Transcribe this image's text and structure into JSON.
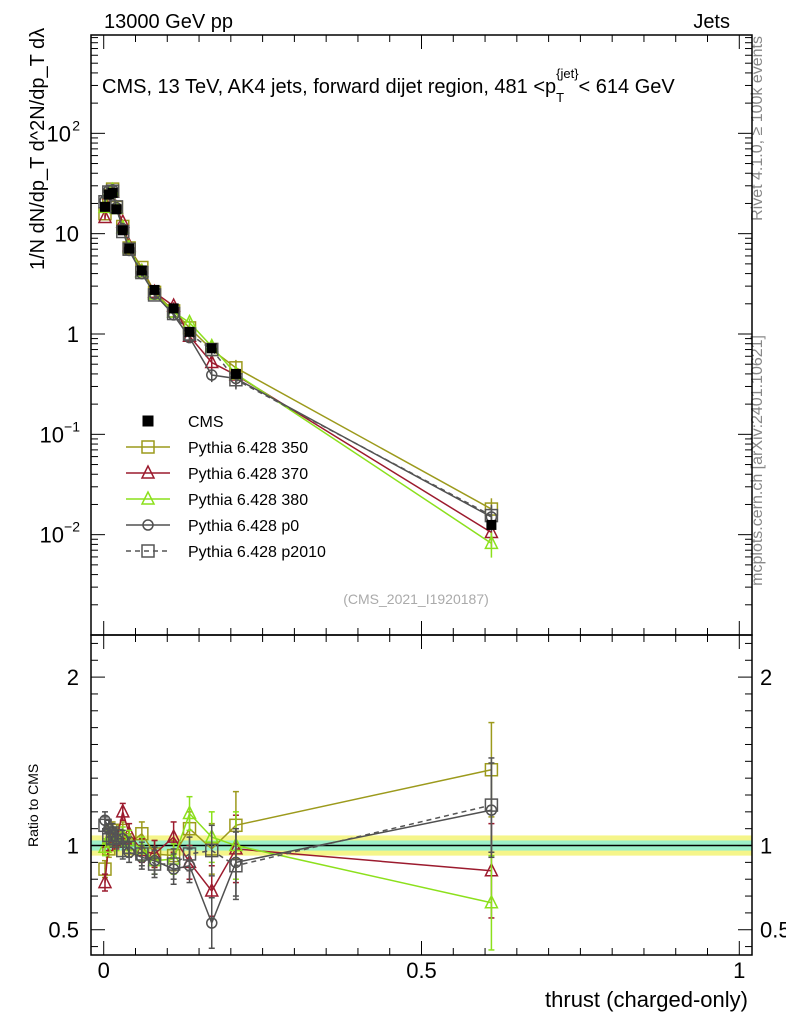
{
  "header": {
    "left": "13000 GeV pp",
    "right": "Jets"
  },
  "chart_data": {
    "type": "line",
    "title": "CMS, 13 TeV, AK4 jets, forward dijet region, 481 <p_T^{jet}< 614 GeV",
    "title_parts": {
      "main": "CMS, 13 TeV, AK4 jets, forward dijet region, 481 <p",
      "sub": "T",
      "sup": "{jet}",
      "tail": "< 614 GeV"
    },
    "xlabel": "thrust (charged-only)",
    "ylabel_main": "1/N dN/dp_T d^2N/dp_T dλ",
    "ylabel_ratio": "Ratio to CMS",
    "side_label_right_top": "Rivet 4.1.0, ≥ 100k events",
    "side_label_right_bottom": "mcplots.cern.ch [arXiv:2401.10621]",
    "analysis_id": "(CMS_2021_I1920187)",
    "xlim": [
      -0.02,
      1.02
    ],
    "ylim_main_log10": [
      -3.0,
      2.98
    ],
    "ylim_ratio": [
      0.35,
      2.25
    ],
    "x_ticks": [
      0,
      0.5,
      1
    ],
    "x_tick_labels": [
      "0",
      "0.5",
      "1"
    ],
    "y_ticks_main": [
      {
        "exp": 2,
        "label": "10",
        "sup": "2"
      },
      {
        "exp": 1,
        "label": "10",
        "sup": ""
      },
      {
        "exp": 0,
        "label": "1",
        "sup": ""
      },
      {
        "exp": -1,
        "label": "10",
        "sup": "−1"
      },
      {
        "exp": -2,
        "label": "10",
        "sup": "−2"
      }
    ],
    "y_ticks_ratio": [
      {
        "value": 0.5,
        "label": "0.5"
      },
      {
        "value": 1,
        "label": "1"
      },
      {
        "value": 2,
        "label": "2"
      }
    ],
    "x": [
      0.002,
      0.008,
      0.014,
      0.02,
      0.03,
      0.04,
      0.06,
      0.08,
      0.11,
      0.135,
      0.17,
      0.208,
      0.61
    ],
    "data": {
      "name": "CMS",
      "values": [
        18.5,
        24.5,
        25.5,
        17.5,
        10.8,
        7.1,
        4.3,
        2.75,
        1.8,
        1.05,
        0.72,
        0.4,
        0.0125
      ],
      "band_inner": 0.03,
      "band_outer": 0.06
    },
    "series": [
      {
        "name": "Pythia 6.428 350",
        "color": "#9c9a1c",
        "marker": "square",
        "dash": false,
        "values": [
          15.8,
          24.0,
          27.8,
          18.3,
          11.8,
          7.2,
          4.6,
          2.6,
          1.7,
          1.15,
          0.7,
          0.46,
          0.018
        ],
        "ratio": [
          0.86,
          0.98,
          1.09,
          1.05,
          1.09,
          1.01,
          1.07,
          0.95,
          0.94,
          1.1,
          0.98,
          1.12,
          1.45
        ],
        "ratio_err": [
          0.05,
          0.05,
          0.05,
          0.05,
          0.05,
          0.06,
          0.07,
          0.08,
          0.09,
          0.1,
          0.15,
          0.2,
          0.28
        ]
      },
      {
        "name": "Pythia 6.428 370",
        "color": "#9c1b2e",
        "marker": "triangle",
        "dash": false,
        "values": [
          14.5,
          25.0,
          26.0,
          18.0,
          13.0,
          7.6,
          4.2,
          2.6,
          1.9,
          0.95,
          0.52,
          0.39,
          0.0105
        ],
        "ratio": [
          0.78,
          1.02,
          1.02,
          1.03,
          1.2,
          1.07,
          0.97,
          0.95,
          1.05,
          0.9,
          0.73,
          0.98,
          0.85
        ],
        "ratio_err": [
          0.05,
          0.05,
          0.05,
          0.05,
          0.05,
          0.06,
          0.07,
          0.08,
          0.09,
          0.1,
          0.15,
          0.2,
          0.28
        ]
      },
      {
        "name": "Pythia 6.428 380",
        "color": "#8ce01c",
        "marker": "triangle",
        "dash": false,
        "values": [
          18.3,
          25.5,
          27.0,
          17.8,
          11.5,
          7.3,
          4.2,
          2.5,
          1.65,
          1.3,
          0.75,
          0.4,
          0.0082
        ],
        "ratio": [
          0.99,
          1.04,
          1.06,
          1.02,
          1.06,
          1.03,
          0.98,
          0.91,
          0.92,
          1.19,
          1.05,
          1.0,
          0.66
        ],
        "ratio_err": [
          0.05,
          0.05,
          0.05,
          0.05,
          0.05,
          0.06,
          0.07,
          0.08,
          0.09,
          0.1,
          0.15,
          0.2,
          0.28
        ]
      },
      {
        "name": "Pythia 6.428 p0",
        "color": "#505050",
        "marker": "circle",
        "dash": false,
        "values": [
          21.3,
          27.0,
          27.4,
          18.2,
          11.2,
          6.8,
          4.0,
          2.5,
          1.55,
          0.92,
          0.39,
          0.36,
          0.015
        ],
        "ratio": [
          1.15,
          1.1,
          1.08,
          1.04,
          1.04,
          0.96,
          0.93,
          0.91,
          0.86,
          0.88,
          0.54,
          0.9,
          1.21
        ],
        "ratio_err": [
          0.05,
          0.05,
          0.05,
          0.05,
          0.05,
          0.06,
          0.07,
          0.08,
          0.09,
          0.1,
          0.15,
          0.2,
          0.28
        ]
      },
      {
        "name": "Pythia 6.428 p2010",
        "color": "#555555",
        "marker": "square",
        "dash": true,
        "values": [
          20.8,
          26.0,
          26.5,
          18.5,
          10.5,
          7.0,
          4.1,
          2.45,
          1.6,
          1.0,
          0.7,
          0.35,
          0.0155
        ],
        "ratio": [
          1.12,
          1.06,
          1.04,
          1.06,
          0.97,
          0.99,
          0.95,
          0.89,
          0.89,
          0.95,
          0.97,
          0.88,
          1.24
        ],
        "ratio_err": [
          0.05,
          0.05,
          0.05,
          0.05,
          0.05,
          0.06,
          0.07,
          0.08,
          0.09,
          0.1,
          0.15,
          0.2,
          0.28
        ]
      }
    ]
  }
}
